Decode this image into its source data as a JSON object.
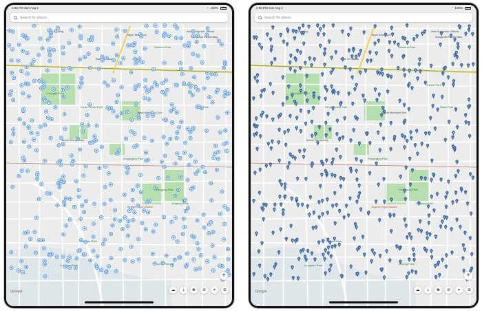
{
  "screens": [
    {
      "id": "left",
      "status": {
        "time": "2:55 PM",
        "date": "Sun Aug 4",
        "battery": "100%"
      },
      "search": {
        "placeholder": "Search for places"
      },
      "marker_style": "circle",
      "marker_color": "#3d8be0"
    },
    {
      "id": "right",
      "status": {
        "time": "2:58 PM",
        "date": "Sun Aug 4",
        "battery": "100%"
      },
      "search": {
        "placeholder": "Search for places"
      },
      "marker_style": "pin",
      "marker_color": "#3e6eae"
    }
  ],
  "map": {
    "labels": [
      {
        "text": "CTS Building",
        "kind": "plain"
      },
      {
        "text": "Taipei Municipal",
        "kind": "plain"
      },
      {
        "text": "Asia Sungmian Official",
        "kind": "plain"
      },
      {
        "text": "Songshan Elementary",
        "kind": "plain"
      },
      {
        "text": "Wanhua Park",
        "kind": "green"
      },
      {
        "text": "Bank of Taiwan",
        "kind": "plain"
      },
      {
        "text": "Wentai Park",
        "kind": "green"
      },
      {
        "text": "Chongde Park",
        "kind": "green"
      },
      {
        "text": "Da'an Forest Park",
        "kind": "green"
      },
      {
        "text": "Taipei Municipal Zoo",
        "kind": "plain"
      },
      {
        "text": "Daan Park",
        "kind": "green"
      },
      {
        "text": "Jinmei Elementary",
        "kind": "plain"
      },
      {
        "text": "Zhuangjing Park",
        "kind": "green"
      },
      {
        "text": "Chengong Park",
        "kind": "green"
      },
      {
        "text": "Xinglong Park",
        "kind": "green"
      },
      {
        "text": "Jingmei Night Market",
        "kind": "orange"
      },
      {
        "text": "Huaxin Park",
        "kind": "green"
      },
      {
        "text": "Wuxing Park",
        "kind": "green"
      },
      {
        "text": "Longmen Park",
        "kind": "green"
      }
    ],
    "google": "Google"
  },
  "toolbar": {
    "zoom": "+",
    "buttons": [
      {
        "name": "cloud-icon",
        "glyph": "☁"
      },
      {
        "name": "pressure-icon",
        "glyph": "⇣"
      },
      {
        "name": "paw-icon",
        "glyph": "❀"
      },
      {
        "name": "satellite-icon",
        "glyph": "⊘"
      },
      {
        "name": "location-pin-icon",
        "glyph": "⌖"
      },
      {
        "name": "locate-me-icon",
        "glyph": "⊕"
      }
    ]
  }
}
